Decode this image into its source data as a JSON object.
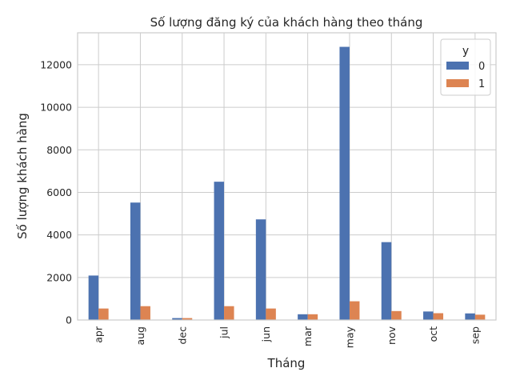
{
  "chart_data": {
    "type": "bar",
    "title": "Số lượng đăng ký của khách hàng theo tháng",
    "xlabel": "Tháng",
    "ylabel": "Số lượng khách hàng",
    "categories": [
      "apr",
      "aug",
      "dec",
      "jul",
      "jun",
      "mar",
      "may",
      "nov",
      "oct",
      "sep"
    ],
    "series": [
      {
        "name": "0",
        "color": "#4c72b0",
        "values": [
          2090,
          5520,
          90,
          6500,
          4730,
          270,
          12840,
          3660,
          400,
          310
        ]
      },
      {
        "name": "1",
        "color": "#dd8452",
        "values": [
          540,
          650,
          90,
          650,
          540,
          270,
          880,
          420,
          320,
          250
        ]
      }
    ],
    "ylim": [
      0,
      13500
    ],
    "yticks": [
      0,
      2000,
      4000,
      6000,
      8000,
      10000,
      12000
    ],
    "ytick_labels": [
      "0",
      "2000",
      "4000",
      "6000",
      "8000",
      "10000",
      "12000"
    ],
    "grid": true,
    "legend": {
      "title": "y",
      "placement": "top-right"
    }
  }
}
